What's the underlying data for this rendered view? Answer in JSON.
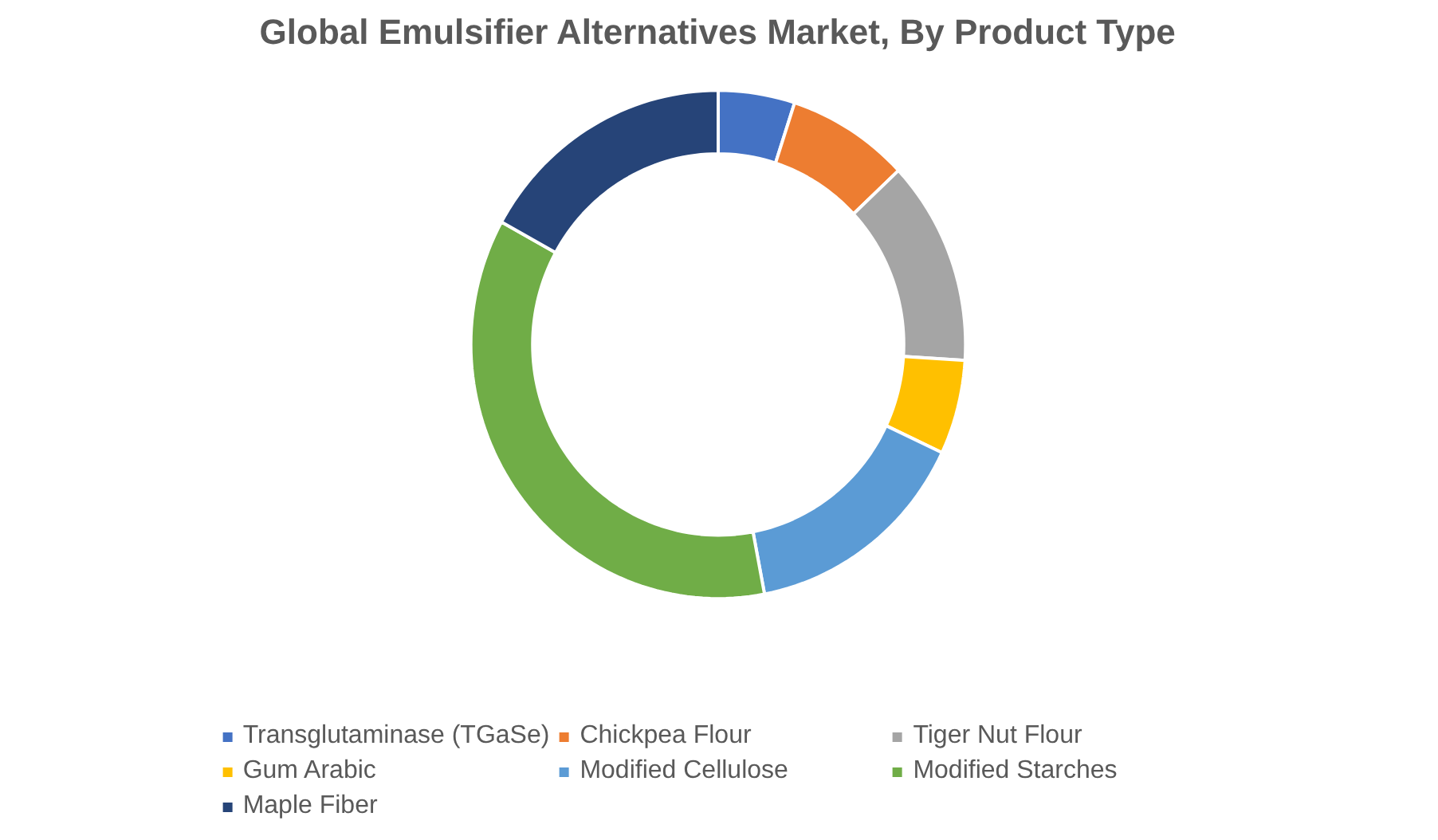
{
  "chart_data": {
    "type": "donut",
    "title": "Global Emulsifier Alternatives Market, By Product Type",
    "categories": [
      "Transglutaminase (TGaSe)",
      "Chickpea Flour",
      "Tiger Nut Flour",
      "Gum Arabic",
      "Modified Cellulose",
      "Modified Starches",
      "Maple Fiber"
    ],
    "values": [
      5,
      8,
      13,
      6,
      15,
      36,
      17
    ],
    "colors": [
      "#4472c4",
      "#ed7d31",
      "#a5a5a5",
      "#ffc000",
      "#5b9bd5",
      "#70ad47",
      "#264478"
    ],
    "legend": "bottom"
  }
}
